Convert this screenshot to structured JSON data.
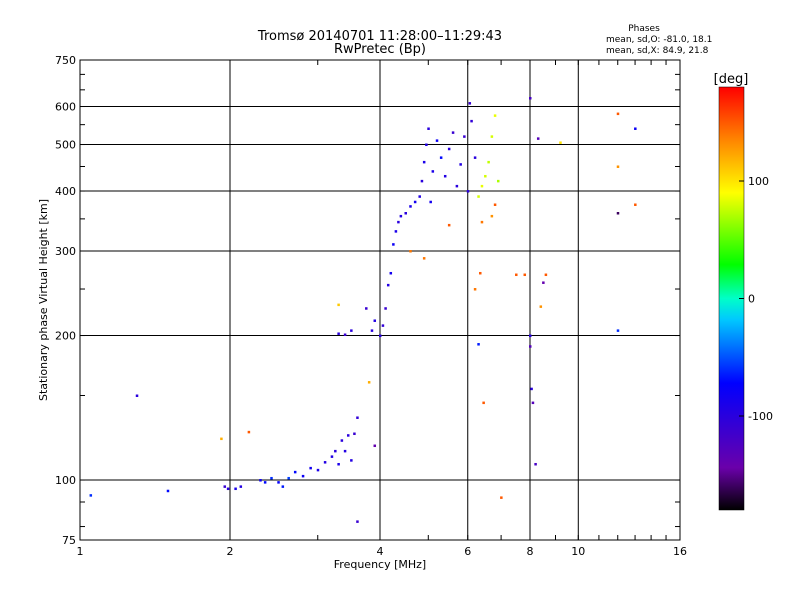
{
  "chart_data": {
    "type": "scatter",
    "title": "Tromsø 20140701 11:28:00–11:29:43",
    "subtitle": "RwPretec (Bp)",
    "xlabel": "Frequency [MHz]",
    "ylabel": "Stationary phase Virtual Height [km]",
    "xscale": "log",
    "yscale": "log",
    "xlim": [
      1,
      16
    ],
    "ylim": [
      75,
      750
    ],
    "x_ticks": [
      1,
      2,
      4,
      6,
      8,
      10,
      16
    ],
    "y_ticks": [
      75,
      100,
      200,
      300,
      400,
      500,
      600,
      750
    ],
    "grid": true,
    "phases_info": {
      "title": "Phases",
      "o_mode": "mean, sd,O:  -81.0,  18.1",
      "x_mode": "mean, sd,X:   84.9,  21.8"
    },
    "colorbar": {
      "label": "[deg]",
      "range": [
        -180,
        180
      ],
      "ticks": [
        -100,
        0,
        100
      ]
    },
    "points_format": [
      "frequency_MHz",
      "virtual_height_km",
      "phase_deg"
    ],
    "points": [
      [
        1.05,
        93,
        -60
      ],
      [
        1.3,
        150,
        -100
      ],
      [
        1.5,
        95,
        -70
      ],
      [
        1.92,
        122,
        120
      ],
      [
        1.95,
        97,
        -110
      ],
      [
        1.98,
        96,
        -100
      ],
      [
        2.05,
        96,
        -90
      ],
      [
        2.1,
        97,
        -95
      ],
      [
        2.18,
        126,
        150
      ],
      [
        2.3,
        100,
        -80
      ],
      [
        2.35,
        99,
        -70
      ],
      [
        2.42,
        101,
        -60
      ],
      [
        2.5,
        99,
        -75
      ],
      [
        2.55,
        97,
        -65
      ],
      [
        2.62,
        101,
        -55
      ],
      [
        2.7,
        104,
        -70
      ],
      [
        2.8,
        102,
        -80
      ],
      [
        2.9,
        106,
        -85
      ],
      [
        3.0,
        105,
        -90
      ],
      [
        3.1,
        109,
        -95
      ],
      [
        3.2,
        112,
        -95
      ],
      [
        3.25,
        115,
        -100
      ],
      [
        3.3,
        108,
        -90
      ],
      [
        3.35,
        121,
        -100
      ],
      [
        3.4,
        115,
        -95
      ],
      [
        3.45,
        124,
        -100
      ],
      [
        3.5,
        110,
        -95
      ],
      [
        3.55,
        125,
        -110
      ],
      [
        3.6,
        135,
        -105
      ],
      [
        3.6,
        82,
        -110
      ],
      [
        3.3,
        202,
        -100
      ],
      [
        3.4,
        201,
        -110
      ],
      [
        3.5,
        205,
        -100
      ],
      [
        3.3,
        232,
        110
      ],
      [
        3.8,
        160,
        120
      ],
      [
        3.9,
        118,
        -140
      ],
      [
        3.75,
        228,
        -110
      ],
      [
        3.85,
        205,
        -100
      ],
      [
        3.9,
        215,
        -95
      ],
      [
        4.0,
        200,
        -100
      ],
      [
        4.05,
        210,
        -105
      ],
      [
        4.1,
        228,
        -110
      ],
      [
        4.15,
        255,
        -95
      ],
      [
        4.2,
        270,
        -85
      ],
      [
        4.25,
        310,
        -80
      ],
      [
        4.3,
        330,
        -90
      ],
      [
        4.35,
        345,
        -100
      ],
      [
        4.4,
        355,
        -95
      ],
      [
        4.5,
        360,
        -100
      ],
      [
        4.6,
        372,
        -90
      ],
      [
        4.7,
        380,
        -85
      ],
      [
        4.8,
        390,
        -95
      ],
      [
        4.85,
        420,
        -100
      ],
      [
        4.9,
        460,
        -90
      ],
      [
        4.95,
        500,
        -95
      ],
      [
        5.0,
        540,
        -100
      ],
      [
        5.05,
        380,
        -85
      ],
      [
        5.1,
        440,
        -90
      ],
      [
        5.2,
        510,
        -80
      ],
      [
        5.3,
        470,
        -70
      ],
      [
        5.4,
        430,
        -95
      ],
      [
        5.5,
        490,
        -100
      ],
      [
        5.6,
        530,
        -110
      ],
      [
        5.7,
        410,
        -100
      ],
      [
        5.8,
        455,
        -95
      ],
      [
        5.9,
        520,
        -110
      ],
      [
        6.0,
        400,
        -100
      ],
      [
        6.05,
        610,
        -110
      ],
      [
        6.1,
        560,
        -105
      ],
      [
        6.2,
        470,
        -100
      ],
      [
        4.6,
        300,
        140
      ],
      [
        4.9,
        290,
        140
      ],
      [
        5.5,
        340,
        150
      ],
      [
        6.3,
        390,
        80
      ],
      [
        6.4,
        410,
        85
      ],
      [
        6.5,
        430,
        80
      ],
      [
        6.6,
        460,
        75
      ],
      [
        6.7,
        520,
        80
      ],
      [
        6.8,
        575,
        85
      ],
      [
        6.9,
        420,
        70
      ],
      [
        6.4,
        345,
        140
      ],
      [
        6.7,
        355,
        130
      ],
      [
        6.8,
        375,
        150
      ],
      [
        6.35,
        270,
        150
      ],
      [
        6.2,
        250,
        140
      ],
      [
        6.3,
        192,
        -65
      ],
      [
        6.45,
        145,
        150
      ],
      [
        7.0,
        92,
        150
      ],
      [
        7.5,
        268,
        150
      ],
      [
        7.8,
        268,
        150
      ],
      [
        8.0,
        625,
        -120
      ],
      [
        8.0,
        200,
        -100
      ],
      [
        8.0,
        190,
        -130
      ],
      [
        8.05,
        155,
        -100
      ],
      [
        8.1,
        145,
        -130
      ],
      [
        8.2,
        108,
        -120
      ],
      [
        8.3,
        515,
        -130
      ],
      [
        8.4,
        230,
        130
      ],
      [
        8.5,
        258,
        -140
      ],
      [
        8.6,
        268,
        150
      ],
      [
        9.2,
        505,
        100
      ],
      [
        12.0,
        580,
        150
      ],
      [
        12.0,
        450,
        130
      ],
      [
        12.0,
        360,
        -160
      ],
      [
        12.0,
        205,
        -60
      ],
      [
        13.0,
        540,
        -80
      ],
      [
        13.0,
        375,
        150
      ]
    ]
  }
}
